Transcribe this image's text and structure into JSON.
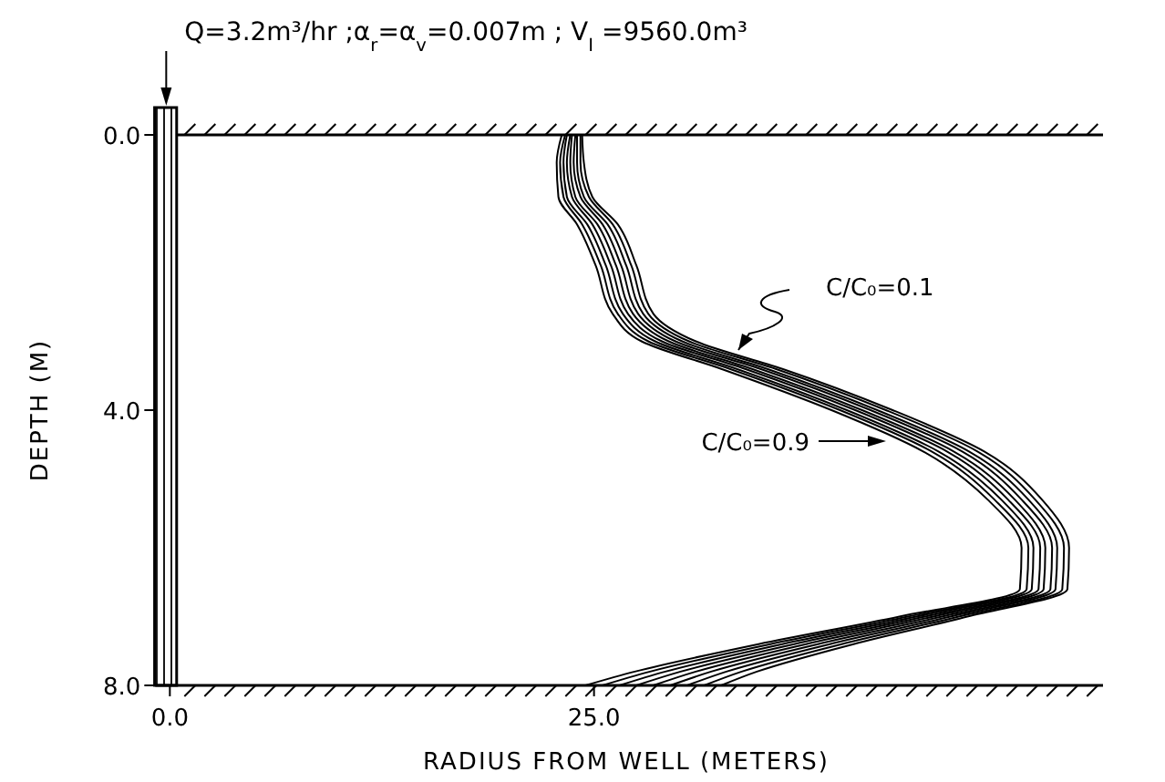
{
  "chart_data": {
    "type": "line",
    "title": "Q=3.2m³/hr ;α$_{r}$=α$_{v}$=0.007m ; V$_{I}$ =9560.0m³",
    "xlabel": "RADIUS FROM WELL (METERS)",
    "ylabel": "DEPTH (M)",
    "xlim": [
      -1.2,
      55
    ],
    "xticks": [
      {
        "value": 0,
        "label": "0.0"
      },
      {
        "value": 25,
        "label": "25.0"
      }
    ],
    "ylim": [
      8,
      0
    ],
    "yticks": [
      {
        "value": 0,
        "label": "0.0"
      },
      {
        "value": 4,
        "label": "4.0"
      },
      {
        "value": 8,
        "label": "8.0"
      }
    ],
    "grid": false,
    "marker": "none",
    "line_style": "solid",
    "bands": [
      {
        "axis": "x",
        "from": -0.9,
        "to": 0.4,
        "color": "#000000"
      }
    ],
    "annotations": [
      "C/C₀=0.1",
      "C/C₀=0.9"
    ],
    "series": [
      {
        "color": "#000000",
        "x": [
          23.1,
          22.8,
          22.9,
          24.0,
          25.1,
          26.1,
          27.8,
          32.5,
          39.0,
          44.4,
          48.2,
          50.2,
          50.1,
          43.0,
          34.7,
          27.4,
          24.5
        ],
        "values": [
          0,
          0.4,
          0.9,
          1.3,
          1.9,
          2.6,
          3.0,
          3.4,
          4.0,
          4.6,
          5.3,
          6.0,
          6.6,
          7.0,
          7.4,
          7.8,
          8.0
        ]
      },
      {
        "color": "#000000",
        "x": [
          23.3,
          23.0,
          23.2,
          24.3,
          25.4,
          26.4,
          28.2,
          33.0,
          39.5,
          44.9,
          48.6,
          50.6,
          50.5,
          43.5,
          35.4,
          28.3,
          25.5
        ],
        "values": [
          0,
          0.4,
          0.9,
          1.3,
          1.9,
          2.6,
          3.0,
          3.4,
          4.0,
          4.6,
          5.3,
          6.0,
          6.6,
          7.0,
          7.4,
          7.8,
          8.0
        ]
      },
      {
        "color": "#000000",
        "x": [
          23.4,
          23.2,
          23.4,
          24.6,
          25.7,
          26.7,
          28.6,
          33.4,
          39.9,
          45.3,
          49.0,
          50.9,
          50.8,
          44.0,
          36.1,
          29.2,
          26.5
        ],
        "values": [
          0,
          0.4,
          0.9,
          1.3,
          1.9,
          2.6,
          3.0,
          3.4,
          4.0,
          4.6,
          5.3,
          6.0,
          6.6,
          7.0,
          7.4,
          7.8,
          8.0
        ]
      },
      {
        "color": "#000000",
        "x": [
          23.6,
          23.4,
          23.7,
          24.9,
          26.0,
          27.0,
          29.0,
          33.9,
          40.4,
          45.8,
          49.4,
          51.3,
          51.2,
          44.5,
          36.8,
          30.1,
          27.5
        ],
        "values": [
          0,
          0.4,
          0.9,
          1.3,
          1.9,
          2.6,
          3.0,
          3.4,
          4.0,
          4.6,
          5.3,
          6.0,
          6.6,
          7.0,
          7.4,
          7.8,
          8.0
        ]
      },
      {
        "color": "#000000",
        "x": [
          23.7,
          23.6,
          23.9,
          25.2,
          26.3,
          27.3,
          29.4,
          34.3,
          40.8,
          46.2,
          49.8,
          51.6,
          51.5,
          45.0,
          37.5,
          31.0,
          28.5
        ],
        "values": [
          0,
          0.4,
          0.9,
          1.3,
          1.9,
          2.6,
          3.0,
          3.4,
          4.0,
          4.6,
          5.3,
          6.0,
          6.6,
          7.0,
          7.4,
          7.8,
          8.0
        ]
      },
      {
        "color": "#000000",
        "x": [
          23.9,
          23.8,
          24.2,
          25.5,
          26.6,
          27.6,
          29.8,
          34.8,
          41.3,
          46.7,
          50.2,
          52.0,
          51.9,
          45.5,
          38.2,
          31.9,
          29.5
        ],
        "values": [
          0,
          0.4,
          0.9,
          1.3,
          1.9,
          2.6,
          3.0,
          3.4,
          4.0,
          4.6,
          5.3,
          6.0,
          6.6,
          7.0,
          7.4,
          7.8,
          8.0
        ]
      },
      {
        "color": "#000000",
        "x": [
          24.0,
          24.0,
          24.4,
          25.8,
          26.9,
          27.9,
          30.2,
          35.2,
          41.7,
          47.1,
          50.6,
          52.3,
          52.2,
          46.0,
          38.9,
          32.8,
          30.5
        ],
        "values": [
          0,
          0.4,
          0.9,
          1.3,
          1.9,
          2.6,
          3.0,
          3.4,
          4.0,
          4.6,
          5.3,
          6.0,
          6.6,
          7.0,
          7.4,
          7.8,
          8.0
        ]
      },
      {
        "color": "#000000",
        "x": [
          24.2,
          24.2,
          24.7,
          26.1,
          27.2,
          28.2,
          30.6,
          35.7,
          42.2,
          47.6,
          51.0,
          52.7,
          52.6,
          46.5,
          39.6,
          33.7,
          31.5
        ],
        "values": [
          0,
          0.4,
          0.9,
          1.3,
          1.9,
          2.6,
          3.0,
          3.4,
          4.0,
          4.6,
          5.3,
          6.0,
          6.6,
          7.0,
          7.4,
          7.8,
          8.0
        ]
      },
      {
        "color": "#000000",
        "x": [
          24.3,
          24.4,
          24.9,
          26.4,
          27.5,
          28.5,
          31.0,
          36.1,
          42.6,
          48.0,
          51.4,
          53.0,
          52.9,
          47.0,
          40.3,
          34.6,
          32.5
        ],
        "values": [
          0,
          0.4,
          0.9,
          1.3,
          1.9,
          2.6,
          3.0,
          3.4,
          4.0,
          4.6,
          5.3,
          6.0,
          6.6,
          7.0,
          7.4,
          7.8,
          8.0
        ]
      }
    ]
  }
}
